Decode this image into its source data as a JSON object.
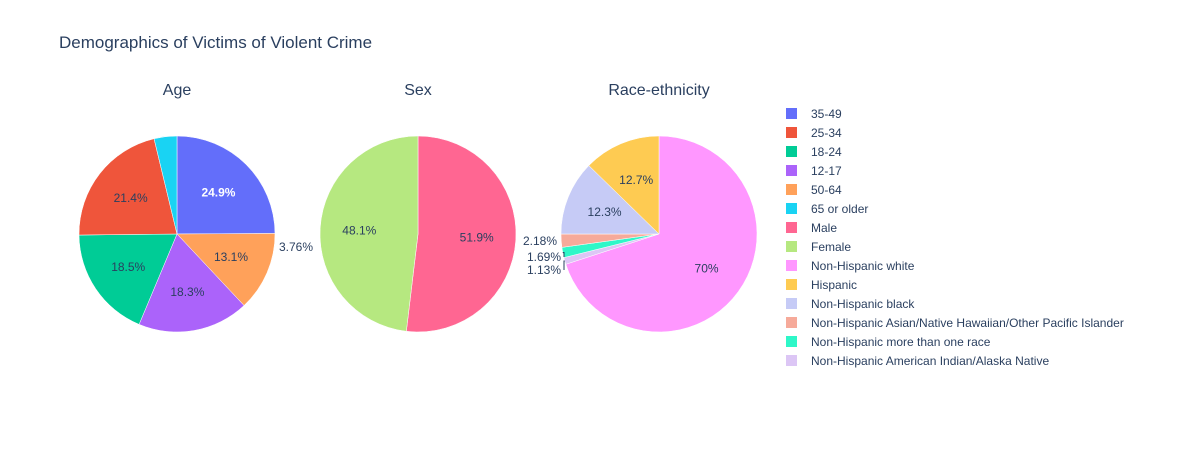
{
  "title": "Demographics of Victims of Violent Crime",
  "chart_data": [
    {
      "type": "pie",
      "title": "Age",
      "slices": [
        {
          "label": "35-49",
          "value": 24.9,
          "text": "24.9%",
          "color": "#636efa"
        },
        {
          "label": "50-64",
          "value": 13.1,
          "text": "13.1%",
          "color": "#ffa15a"
        },
        {
          "label": "12-17",
          "value": 18.3,
          "text": "18.3%",
          "color": "#ab63fa"
        },
        {
          "label": "18-24",
          "value": 18.5,
          "text": "18.5%",
          "color": "#00cc96"
        },
        {
          "label": "25-34",
          "value": 21.4,
          "text": "21.4%",
          "color": "#ef553b"
        },
        {
          "label": "65 or older",
          "value": 3.76,
          "text": "3.76%",
          "color": "#19d3f3"
        }
      ]
    },
    {
      "type": "pie",
      "title": "Sex",
      "slices": [
        {
          "label": "Male",
          "value": 51.9,
          "text": "51.9%",
          "color": "#ff6692"
        },
        {
          "label": "Female",
          "value": 48.1,
          "text": "48.1%",
          "color": "#b6e880"
        }
      ]
    },
    {
      "type": "pie",
      "title": "Race-ethnicity",
      "slices": [
        {
          "label": "Non-Hispanic white",
          "value": 70,
          "text": "70%",
          "color": "#ff97ff"
        },
        {
          "label": "Non-Hispanic American Indian/Alaska Native",
          "value": 1.13,
          "text": "1.13%",
          "color": "#dcc6f5"
        },
        {
          "label": "Non-Hispanic more than one race",
          "value": 1.69,
          "text": "1.69%",
          "color": "#2ef7c8"
        },
        {
          "label": "Non-Hispanic Asian/Native Hawaiian/Other Pacific Islander",
          "value": 2.18,
          "text": "2.18%",
          "color": "#f6aa9a"
        },
        {
          "label": "Non-Hispanic black",
          "value": 12.3,
          "text": "12.3%",
          "color": "#c6cbf6"
        },
        {
          "label": "Hispanic",
          "value": 12.7,
          "text": "12.7%",
          "color": "#fecb52"
        }
      ]
    }
  ],
  "legend": [
    {
      "label": "35-49",
      "color": "#636efa"
    },
    {
      "label": "25-34",
      "color": "#ef553b"
    },
    {
      "label": "18-24",
      "color": "#00cc96"
    },
    {
      "label": "12-17",
      "color": "#ab63fa"
    },
    {
      "label": "50-64",
      "color": "#ffa15a"
    },
    {
      "label": "65 or older",
      "color": "#19d3f3"
    },
    {
      "label": "Male",
      "color": "#ff6692"
    },
    {
      "label": "Female",
      "color": "#b6e880"
    },
    {
      "label": "Non-Hispanic white",
      "color": "#ff97ff"
    },
    {
      "label": "Hispanic",
      "color": "#fecb52"
    },
    {
      "label": "Non-Hispanic black",
      "color": "#c6cbf6"
    },
    {
      "label": "Non-Hispanic Asian/Native Hawaiian/Other Pacific Islander",
      "color": "#f6aa9a"
    },
    {
      "label": "Non-Hispanic more than one race",
      "color": "#2ef7c8"
    },
    {
      "label": "Non-Hispanic American Indian/Alaska Native",
      "color": "#dcc6f5"
    }
  ]
}
